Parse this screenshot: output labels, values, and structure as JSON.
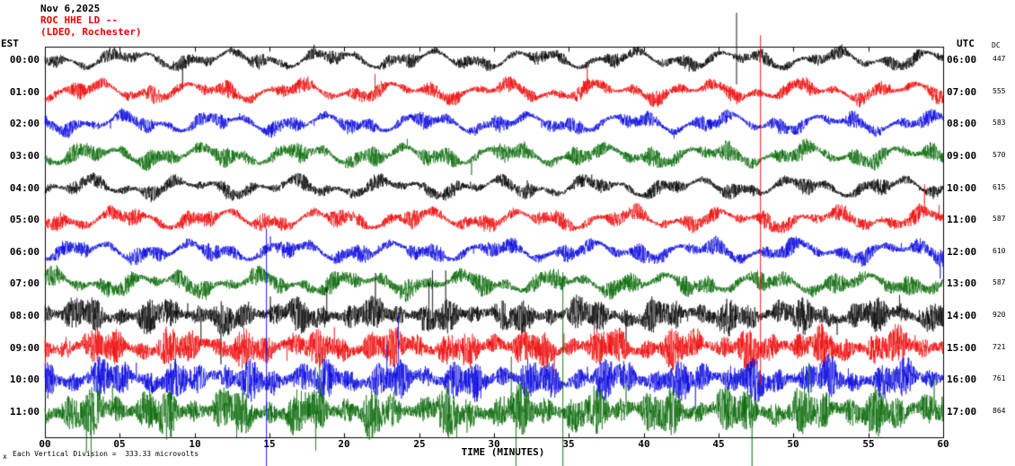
{
  "header": {
    "date": "Nov 6,2025",
    "station": "ROC HHE LD --",
    "location": "(LDEO, Rochester)"
  },
  "colors": {
    "header_date": "#000000",
    "header_station": "#ee0000",
    "header_location": "#ee0000",
    "axis_text": "#000000",
    "border": "#000000"
  },
  "axis": {
    "left_label": "EST",
    "right_label": "UTC",
    "dc_label": "DC",
    "x_title": "TIME (MINUTES)",
    "x_ticks": [
      "00",
      "05",
      "10",
      "15",
      "20",
      "25",
      "30",
      "35",
      "40",
      "45",
      "50",
      "55",
      "60"
    ]
  },
  "footer": {
    "marker": "x",
    "scale_note": "Each Vertical Division =  333.33 microvolts"
  },
  "chart_data": {
    "type": "line",
    "title": "ROC HHE LD -- (LDEO, Rochester) helicorder seismogram",
    "date": "Nov 6,2025",
    "xlabel": "TIME (MINUTES)",
    "x_range_minutes": [
      0,
      60
    ],
    "x_tick_step_minutes": 5,
    "vertical_division_microvolts": 333.33,
    "trace_colors_cycle": [
      "#000000",
      "#ee0000",
      "#0000dd",
      "#006600"
    ],
    "rows": [
      {
        "est": "00:00",
        "utc": "06:00",
        "dc": 447,
        "color": "#000000",
        "amp": 9
      },
      {
        "est": "01:00",
        "utc": "07:00",
        "dc": 555,
        "color": "#ee0000",
        "amp": 10
      },
      {
        "est": "02:00",
        "utc": "08:00",
        "dc": 583,
        "color": "#0000dd",
        "amp": 10
      },
      {
        "est": "03:00",
        "utc": "09:00",
        "dc": 570,
        "color": "#006600",
        "amp": 12
      },
      {
        "est": "04:00",
        "utc": "10:00",
        "dc": 615,
        "color": "#000000",
        "amp": 10
      },
      {
        "est": "05:00",
        "utc": "11:00",
        "dc": 587,
        "color": "#ee0000",
        "amp": 11
      },
      {
        "est": "06:00",
        "utc": "12:00",
        "dc": 610,
        "color": "#0000dd",
        "amp": 11
      },
      {
        "est": "07:00",
        "utc": "13:00",
        "dc": 587,
        "color": "#006600",
        "amp": 13
      },
      {
        "est": "08:00",
        "utc": "14:00",
        "dc": 920,
        "color": "#000000",
        "amp": 22
      },
      {
        "est": "09:00",
        "utc": "15:00",
        "dc": 721,
        "color": "#ee0000",
        "amp": 24
      },
      {
        "est": "10:00",
        "utc": "16:00",
        "dc": 761,
        "color": "#0000dd",
        "amp": 25
      },
      {
        "est": "11:00",
        "utc": "17:00",
        "dc": 864,
        "color": "#006600",
        "amp": 30
      }
    ],
    "spike_events": [
      {
        "row_index": 0,
        "minute": 46.2,
        "extent_up": 52,
        "extent_down": 28
      },
      {
        "row_index": 5,
        "minute": 47.8,
        "extent_up": 205,
        "extent_down": 185
      },
      {
        "row_index": 10,
        "minute": 14.8,
        "extent_up": 168,
        "extent_down": 100
      },
      {
        "row_index": 11,
        "minute": 34.6,
        "extent_up": 155,
        "extent_down": 62
      }
    ]
  }
}
